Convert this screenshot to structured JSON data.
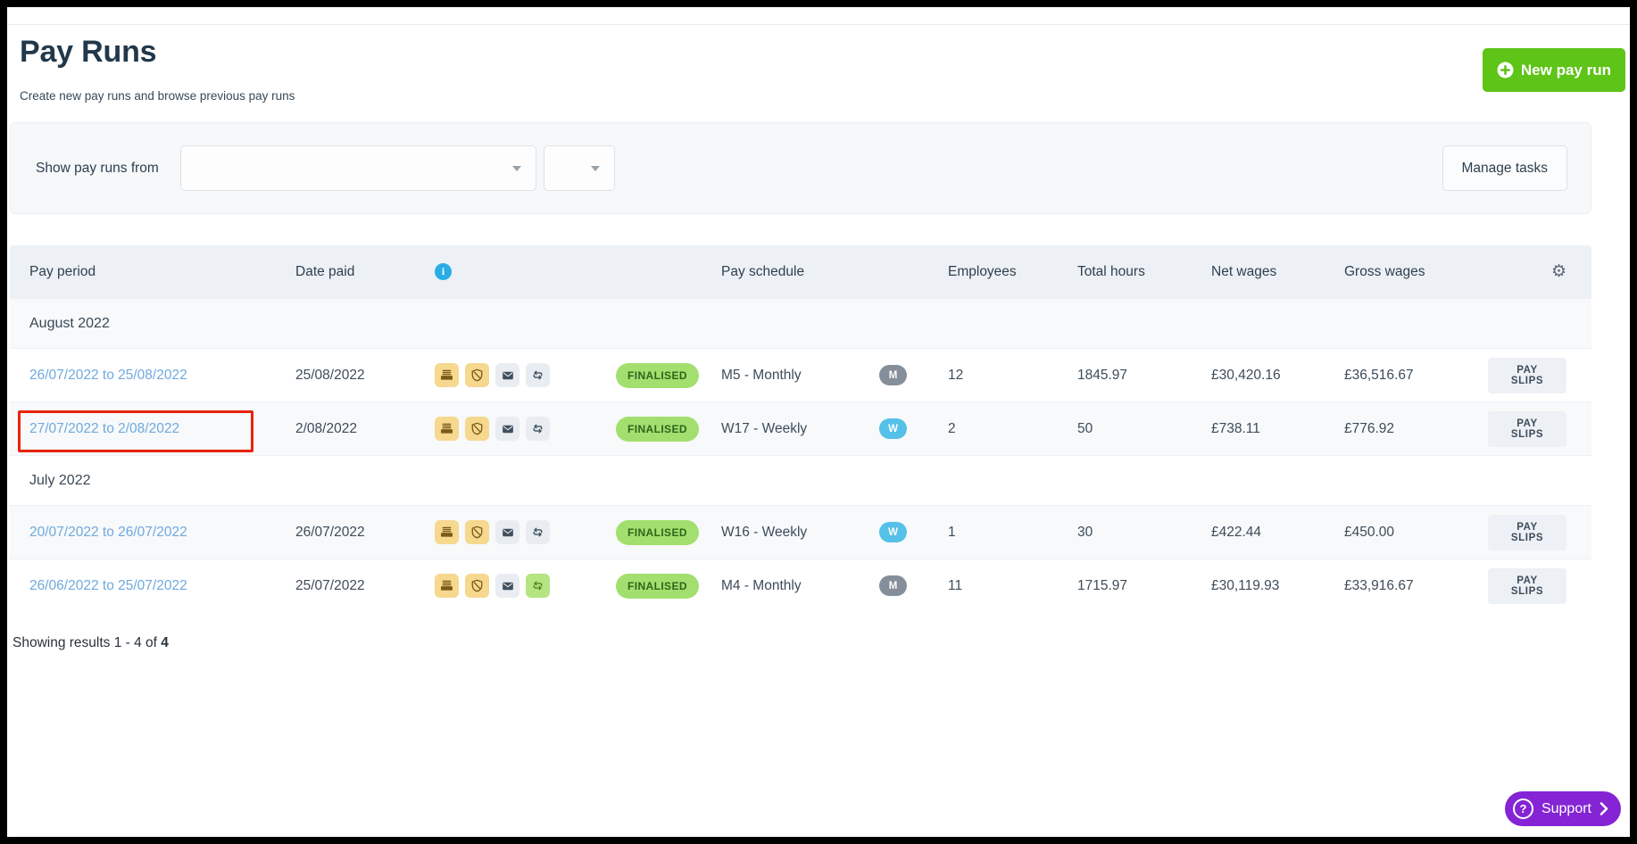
{
  "page": {
    "title": "Pay Runs",
    "subtitle": "Create new pay runs and browse previous pay runs",
    "new_pay_run_label": "New pay run",
    "results_text_prefix": "Showing results 1 - 4 of ",
    "results_total": "4",
    "support_label": "Support"
  },
  "filter": {
    "label": "Show pay runs from",
    "dropdown_primary_value": "",
    "dropdown_secondary_value": "",
    "manage_tasks_label": "Manage tasks"
  },
  "table": {
    "columns": [
      "Pay period",
      "Date paid",
      "Pay schedule",
      "Employees",
      "Total hours",
      "Net wages",
      "Gross wages"
    ],
    "header_icons": [
      "info-icon",
      "settings-gear-icon"
    ],
    "payslips_label": "PAY SLIPS",
    "groups": [
      {
        "label": "August 2022",
        "rows": [
          {
            "pay_period": "26/07/2022 to 25/08/2022",
            "date_paid": "25/08/2022",
            "status": "FINALISED",
            "pay_schedule": "M5 - Monthly",
            "schedule_badge": "M",
            "schedule_type": "monthly",
            "employees": "12",
            "total_hours": "1845.97",
            "net_wages": "£30,420.16",
            "gross_wages": "£36,516.67",
            "icons": [
              {
                "name": "payslips-printed-icon",
                "style": "amber"
              },
              {
                "name": "shield-icon",
                "style": "amber"
              },
              {
                "name": "email-icon",
                "style": "gray"
              },
              {
                "name": "sync-icon",
                "style": "gray"
              }
            ],
            "highlighted": false
          },
          {
            "pay_period": "27/07/2022 to 2/08/2022",
            "date_paid": "2/08/2022",
            "status": "FINALISED",
            "pay_schedule": "W17 - Weekly",
            "schedule_badge": "W",
            "schedule_type": "weekly",
            "employees": "2",
            "total_hours": "50",
            "net_wages": "£738.11",
            "gross_wages": "£776.92",
            "icons": [
              {
                "name": "payslips-printed-icon",
                "style": "amber"
              },
              {
                "name": "shield-icon",
                "style": "amber"
              },
              {
                "name": "email-icon",
                "style": "gray"
              },
              {
                "name": "sync-icon",
                "style": "gray"
              }
            ],
            "highlighted": true
          }
        ]
      },
      {
        "label": "July 2022",
        "rows": [
          {
            "pay_period": "20/07/2022 to 26/07/2022",
            "date_paid": "26/07/2022",
            "status": "FINALISED",
            "pay_schedule": "W16 - Weekly",
            "schedule_badge": "W",
            "schedule_type": "weekly",
            "employees": "1",
            "total_hours": "30",
            "net_wages": "£422.44",
            "gross_wages": "£450.00",
            "icons": [
              {
                "name": "payslips-printed-icon",
                "style": "amber"
              },
              {
                "name": "shield-icon",
                "style": "amber"
              },
              {
                "name": "email-icon",
                "style": "gray"
              },
              {
                "name": "sync-icon",
                "style": "gray"
              }
            ],
            "highlighted": false
          },
          {
            "pay_period": "26/06/2022 to 25/07/2022",
            "date_paid": "25/07/2022",
            "status": "FINALISED",
            "pay_schedule": "M4 - Monthly",
            "schedule_badge": "M",
            "schedule_type": "monthly",
            "employees": "11",
            "total_hours": "1715.97",
            "net_wages": "£30,119.93",
            "gross_wages": "£33,916.67",
            "icons": [
              {
                "name": "payslips-printed-icon",
                "style": "amber"
              },
              {
                "name": "shield-icon",
                "style": "amber"
              },
              {
                "name": "email-icon",
                "style": "gray"
              },
              {
                "name": "sync-icon",
                "style": "green"
              }
            ],
            "highlighted": false
          }
        ]
      }
    ]
  },
  "colors": {
    "green-button": "#5ec418",
    "green-badge": "#a3df6e",
    "green-badge-text": "#2c661b",
    "amber-chip": "#f6d88e",
    "green-chip": "#b5e483",
    "link-blue": "#6fa9de",
    "info-blue": "#29ade4",
    "monthly-badge": "#848f99",
    "weekly-badge": "#55c0e8",
    "table-header": "#edf1f6",
    "panel": "#f6f8fa",
    "stripe": "#f7f9fa",
    "navy-dark": "#22384a",
    "purple": "#8424d4",
    "annotation-red": "#e8230d",
    "divider": "#e8ebee"
  }
}
